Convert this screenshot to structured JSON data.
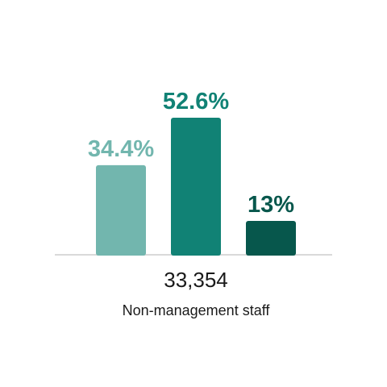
{
  "chart_data": {
    "type": "bar",
    "categories": [
      "",
      "",
      ""
    ],
    "values": [
      34.4,
      52.6,
      13
    ],
    "value_labels": [
      "34.4%",
      "52.6%",
      "13%"
    ],
    "colors": [
      "#72b6ae",
      "#118275",
      "#07574c"
    ],
    "total": "33,354",
    "group_label": "Non-management staff",
    "ylim": [
      0,
      60
    ],
    "grid": false,
    "legend": "none"
  }
}
